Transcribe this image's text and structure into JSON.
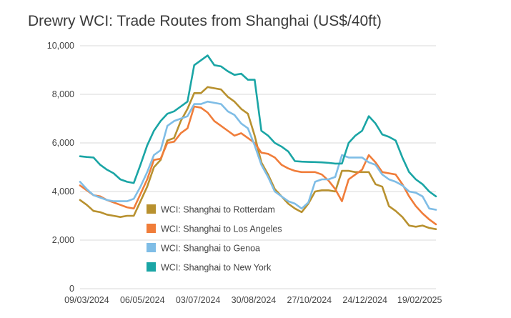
{
  "chart_data": {
    "type": "line",
    "title": "Drewry WCI: Trade Routes from Shanghai (US$/40ft)",
    "xlabel": "",
    "ylabel": "",
    "ylim": [
      0,
      10000
    ],
    "yticks": [
      0,
      2000,
      4000,
      6000,
      8000,
      10000
    ],
    "ytick_labels": [
      "0",
      "2,000",
      "4,000",
      "6,000",
      "8,000",
      "10,000"
    ],
    "xtick_labels": [
      "09/03/2024",
      "06/05/2024",
      "03/07/2024",
      "30/08/2024",
      "27/10/2024",
      "24/12/2024",
      "19/02/2025"
    ],
    "xticks": [
      "2024-03-09",
      "2024-05-06",
      "2024-07-03",
      "2024-08-30",
      "2024-10-27",
      "2024-12-24",
      "2025-02-19"
    ],
    "x_start": "2024-03-02",
    "x_step_days": 7,
    "grid": true,
    "legend_placement": "center-left inside plot",
    "series": [
      {
        "name": "WCI: Shanghai to Rotterdam",
        "color": "#b8912f",
        "values": [
          3650,
          3450,
          3200,
          3150,
          3050,
          3000,
          2950,
          3000,
          3000,
          3600,
          4200,
          5000,
          5300,
          6100,
          6200,
          6900,
          7400,
          8050,
          8050,
          8300,
          8250,
          8200,
          7900,
          7700,
          7400,
          7200,
          6300,
          5200,
          4700,
          4100,
          3800,
          3500,
          3300,
          3150,
          3500,
          4000,
          4050,
          4050,
          4000,
          4850,
          4850,
          4800,
          4800,
          4800,
          4300,
          4200,
          3400,
          3200,
          2950,
          2600,
          2550,
          2600,
          2500,
          2450
        ]
      },
      {
        "name": "WCI: Shanghai to Los Angeles",
        "color": "#f07d3a",
        "values": [
          4250,
          4050,
          3850,
          3800,
          3650,
          3550,
          3450,
          3350,
          3300,
          3900,
          4500,
          5300,
          5350,
          6000,
          6050,
          6400,
          6600,
          7500,
          7450,
          7250,
          6900,
          6700,
          6500,
          6300,
          6400,
          6200,
          6000,
          5600,
          5550,
          5400,
          5100,
          4950,
          4850,
          4800,
          4800,
          4800,
          4700,
          4450,
          4100,
          3600,
          4500,
          4700,
          4900,
          5500,
          5200,
          4800,
          4750,
          4700,
          4300,
          3800,
          3400,
          3100,
          2850,
          2650
        ]
      },
      {
        "name": "WCI: Shanghai to Genoa",
        "color": "#7fbde6",
        "values": [
          4400,
          4100,
          3850,
          3750,
          3650,
          3600,
          3600,
          3600,
          3700,
          4200,
          4800,
          5500,
          5700,
          6700,
          6900,
          7000,
          7100,
          7600,
          7600,
          7700,
          7650,
          7600,
          7300,
          7150,
          6800,
          6600,
          5900,
          5100,
          4600,
          4000,
          3800,
          3600,
          3500,
          3300,
          3550,
          4400,
          4500,
          4500,
          4600,
          5500,
          5400,
          5400,
          5400,
          5200,
          5100,
          4700,
          4500,
          4400,
          4250,
          4000,
          3950,
          3800,
          3300,
          3250
        ]
      },
      {
        "name": "WCI: Shanghai to New York",
        "color": "#1aa5a5",
        "values": [
          5450,
          5420,
          5400,
          5100,
          4900,
          4750,
          4500,
          4400,
          4350,
          5100,
          5900,
          6500,
          6900,
          7200,
          7300,
          7500,
          7700,
          9200,
          9400,
          9600,
          9200,
          9150,
          8950,
          8800,
          8850,
          8600,
          8600,
          6500,
          6300,
          6000,
          5850,
          5650,
          5250,
          5230,
          5220,
          5210,
          5200,
          5180,
          5150,
          5150,
          6000,
          6300,
          6500,
          7100,
          6800,
          6350,
          6250,
          6100,
          5400,
          4800,
          4500,
          4300,
          4000,
          3800
        ]
      }
    ]
  }
}
